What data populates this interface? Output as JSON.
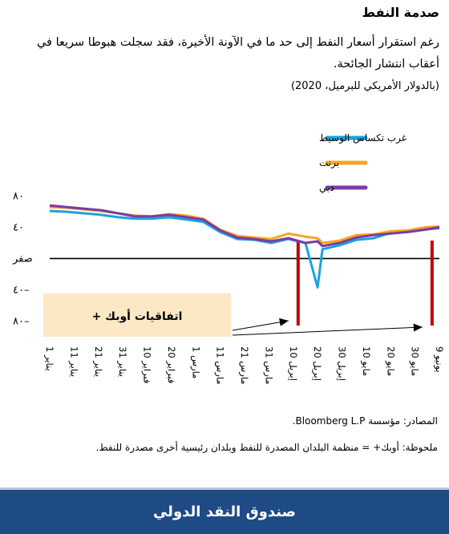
{
  "header": {
    "title": "صدمة النفط",
    "subtitle": "رغم استقرار أسعار النفط إلى حد ما في الآونة الأخيرة، فقد سجلت هبوطا سريعا في أعقاب انتشار الجائحة.",
    "units": "(بالدولار الأمريكي للبرميل، 2020)"
  },
  "chart_data": {
    "type": "line",
    "x": [
      "2020-01-01",
      "2020-01-08",
      "2020-01-15",
      "2020-01-22",
      "2020-01-29",
      "2020-02-05",
      "2020-02-12",
      "2020-02-19",
      "2020-02-26",
      "2020-03-04",
      "2020-03-11",
      "2020-03-18",
      "2020-03-25",
      "2020-04-01",
      "2020-04-08",
      "2020-04-15",
      "2020-04-20",
      "2020-04-22",
      "2020-04-29",
      "2020-05-06",
      "2020-05-13",
      "2020-05-20",
      "2020-05-27",
      "2020-06-03",
      "2020-06-09"
    ],
    "x_tick_labels": [
      "1 يناير",
      "11 يناير",
      "21 يناير",
      "31 يناير",
      "10 فبراير",
      "20 فبراير",
      "1 مارس",
      "11 مارس",
      "21 مارس",
      "31 مارس",
      "10 إبريل",
      "20 إبريل",
      "30 إبريل",
      "10 مايو",
      "20 مايو",
      "30 مايو",
      "9 يونيو"
    ],
    "y_ticks": [
      80,
      40,
      0,
      -40,
      -80
    ],
    "y_tick_labels": [
      "٨٠",
      "٤٠",
      "صفر",
      "٤٠–",
      "٨٠–"
    ],
    "ylim": [
      -90,
      95
    ],
    "series": [
      {
        "name": "غرب تكساس الوسيط",
        "color": "#1aa3e0",
        "values": [
          61,
          60,
          58,
          56,
          53,
          51,
          51,
          53,
          50,
          47,
          34,
          25,
          24,
          20,
          25,
          20,
          -37,
          12,
          17,
          24,
          26,
          33,
          34,
          37,
          39
        ]
      },
      {
        "name": "برنت",
        "color": "#f5a623",
        "values": [
          66,
          65,
          63,
          61,
          58,
          55,
          54,
          57,
          55,
          51,
          37,
          29,
          27,
          25,
          32,
          28,
          26,
          20,
          23,
          30,
          31,
          35,
          36,
          40,
          41
        ]
      },
      {
        "name": "دبي",
        "color": "#7b3aa5",
        "values": [
          68,
          66,
          64,
          62,
          58,
          54,
          54,
          56,
          53,
          50,
          36,
          27,
          25,
          22,
          26,
          20,
          22,
          16,
          20,
          27,
          30,
          32,
          34,
          37,
          40
        ]
      }
    ],
    "events": [
      "2020-04-12",
      "2020-06-06"
    ],
    "event_color": "#c00000",
    "annotation": "اتفاقيات أوبك +",
    "zero_line": true,
    "legend_position": "top-left"
  },
  "footer": {
    "sources": "المصادر: مؤسسة Bloomberg L.P.",
    "note": "ملحوظة: أوبك+ = منظمة البلدان المصدرة للنفط وبلدان رئيسية أخرى مصدرة للنفط.",
    "brand": "صندوق النقد الدولي"
  }
}
